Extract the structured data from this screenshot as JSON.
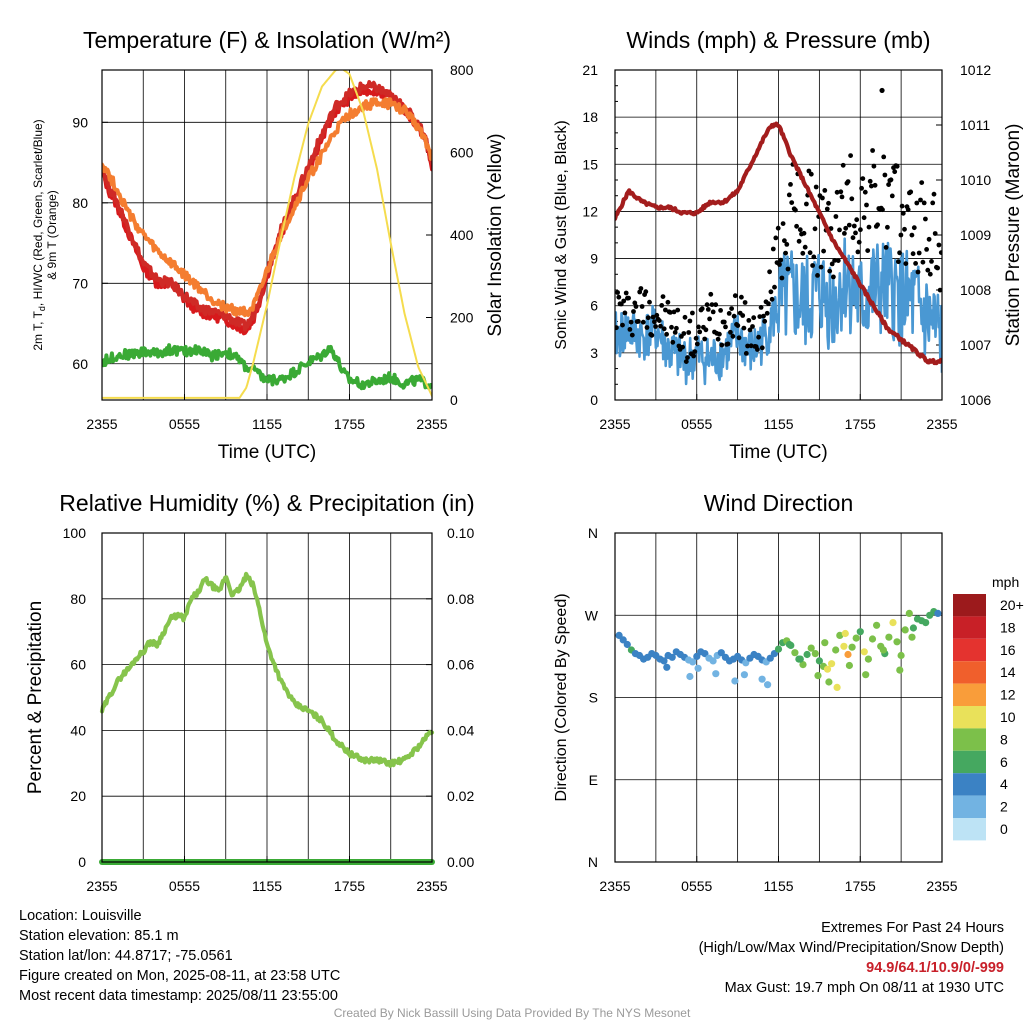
{
  "colors": {
    "temp_red": "#d7191c",
    "temp_scarlet": "#cf2a26",
    "temp_9m_orange": "#f47d30",
    "dewpoint_green": "#3aaa35",
    "insolation_yellow": "#f5dc4e",
    "wind_blue": "#4a98d3",
    "gust_black": "#000000",
    "pressure_maroon": "#a31d1d",
    "rh_green": "#86c44c",
    "precip_green": "#3aaa35"
  },
  "chart_data": [
    {
      "id": "temperature",
      "type": "line",
      "title": "Temperature (F) & Insolation (W/m²)",
      "xlabel": "Time (UTC)",
      "ylabel": "2m T, Td, HI/WC (Red, Green, Scarlet/Blue) & 9m T (Orange)",
      "ylabel_lines": [
        "2m T, T",
        "d",
        ", HI/WC (Red, Green, Scarlet/Blue)",
        "& 9m T (Orange)"
      ],
      "y2label": "Solar Insolation (Yellow)",
      "xticks": [
        "2355",
        "0555",
        "1155",
        "1755",
        "2355"
      ],
      "yticks": [
        60,
        70,
        80,
        90
      ],
      "y2ticks": [
        0,
        200,
        400,
        600,
        800
      ],
      "ylim": [
        55.5,
        96.5
      ],
      "y2lim": [
        0,
        800
      ],
      "x_hours": [
        0,
        24
      ],
      "series": [
        {
          "name": "2m T",
          "color": "#d7191c",
          "x": [
            0,
            0.5,
            1,
            2,
            3,
            4,
            5,
            6,
            7,
            8,
            9,
            10,
            10.5,
            11,
            11.5,
            12,
            13,
            14,
            15,
            16,
            17,
            18,
            19,
            20,
            21,
            22,
            22.5,
            23,
            23.5,
            24
          ],
          "values": [
            84,
            81.5,
            80,
            76,
            72,
            70,
            70,
            68,
            66.5,
            66,
            65.5,
            64.5,
            64.2,
            65.5,
            68,
            71,
            76,
            80,
            84,
            88,
            91.5,
            93,
            94,
            94,
            93,
            91.5,
            90.5,
            89.5,
            88,
            84.5
          ]
        },
        {
          "name": "HI/WC",
          "color": "#cf2a26",
          "x": [
            0,
            0.5,
            1,
            2,
            3,
            4,
            5,
            6,
            7,
            8,
            9,
            10,
            10.5,
            11,
            11.5,
            12,
            13,
            14,
            15,
            16,
            17,
            18,
            19,
            20,
            21,
            22,
            22.5,
            23,
            23.5,
            24
          ],
          "values": [
            84.5,
            82,
            80.5,
            76.5,
            72.5,
            70.5,
            70,
            68.5,
            67,
            66.5,
            66,
            65,
            64.6,
            66,
            68.5,
            71.5,
            76.5,
            80.5,
            84.5,
            88.5,
            92,
            93.5,
            94.5,
            94.3,
            93.2,
            91.8,
            90.8,
            89.8,
            88.2,
            84.8
          ]
        },
        {
          "name": "9m T",
          "color": "#f47d30",
          "x": [
            0,
            0.5,
            1,
            2,
            3,
            4,
            5,
            6,
            7,
            8,
            9,
            10,
            10.5,
            11,
            11.5,
            12,
            13,
            14,
            15,
            16,
            17,
            18,
            19,
            20,
            21,
            22,
            22.5,
            23,
            23.5,
            24
          ],
          "values": [
            85,
            83.5,
            82,
            78.5,
            76,
            74,
            72.5,
            71,
            69.5,
            68,
            67,
            66.5,
            66.5,
            67,
            69,
            71.5,
            76,
            79.5,
            83,
            86,
            89,
            91,
            92,
            92.5,
            92.3,
            91.5,
            90.5,
            89.5,
            88,
            85.5
          ]
        },
        {
          "name": "Td",
          "color": "#3aaa35",
          "x": [
            0,
            1,
            2,
            3,
            4,
            5,
            6,
            7,
            8,
            9,
            10,
            10.5,
            11,
            11.5,
            12,
            13,
            14,
            15,
            16,
            16.5,
            17,
            17.5,
            18,
            19,
            20,
            21,
            22,
            23,
            24
          ],
          "values": [
            60.2,
            61,
            61.2,
            61.5,
            61.3,
            61.8,
            61.5,
            61.8,
            61,
            61.5,
            60.5,
            59.5,
            59.3,
            58.5,
            58,
            58,
            59,
            60.2,
            61,
            62,
            61,
            59,
            58,
            57.5,
            57.8,
            58.3,
            57.5,
            58,
            57.3
          ]
        },
        {
          "name": "Insolation",
          "color": "#f5dc4e",
          "axis": "y2",
          "x": [
            0,
            10,
            10.5,
            11,
            12,
            13,
            14,
            15,
            16,
            17,
            17.5,
            18,
            19,
            20,
            21,
            22,
            23,
            24
          ],
          "values": [
            5,
            5,
            30,
            90,
            230,
            390,
            540,
            670,
            760,
            800,
            802,
            790,
            700,
            560,
            380,
            210,
            80,
            10
          ]
        }
      ]
    },
    {
      "id": "winds",
      "type": "line",
      "title": "Winds (mph) & Pressure (mb)",
      "xlabel": "Time (UTC)",
      "ylabel": "Sonic Wind & Gust (Blue, Black)",
      "y2label": "Station Pressure (Maroon)",
      "xticks": [
        "2355",
        "0555",
        "1155",
        "1755",
        "2355"
      ],
      "yticks": [
        0,
        3,
        6,
        9,
        12,
        15,
        18,
        21
      ],
      "y2ticks": [
        1006,
        1007,
        1008,
        1009,
        1010,
        1011,
        1012
      ],
      "ylim": [
        0,
        21
      ],
      "y2lim": [
        1006,
        1012
      ],
      "series": [
        {
          "name": "Sonic Wind",
          "color": "#4a98d3",
          "x": [
            0,
            1,
            2,
            3,
            4,
            5,
            6,
            7,
            8,
            9,
            10,
            11,
            12,
            13,
            14,
            15,
            16,
            17,
            18,
            19,
            20,
            21,
            22,
            23,
            24
          ],
          "values": [
            4,
            4.5,
            4,
            4.5,
            3,
            2.5,
            2.8,
            2.5,
            3,
            4,
            3,
            4,
            6,
            6.5,
            6,
            7,
            6,
            8,
            6,
            7,
            7,
            6.5,
            6,
            5,
            4
          ]
        },
        {
          "name": "Gust",
          "color": "#000000",
          "x": [
            0,
            1,
            2,
            3,
            4,
            5,
            6,
            7,
            8,
            9,
            10,
            11,
            12,
            13,
            14,
            15,
            16,
            17,
            18,
            19,
            20,
            21,
            22,
            23,
            24
          ],
          "values": [
            6,
            5.5,
            6,
            5.5,
            5,
            4,
            4,
            5.5,
            5,
            5.5,
            4,
            5,
            10,
            12,
            11.5,
            11,
            10,
            13,
            12,
            13,
            12.5,
            11.5,
            11,
            10.5,
            9.5
          ]
        },
        {
          "name": "Pressure",
          "color": "#a31d1d",
          "axis": "y2",
          "x": [
            0,
            1,
            2,
            3,
            4,
            5,
            6,
            7,
            8,
            9,
            10,
            11,
            11.5,
            12,
            13,
            14,
            15,
            16,
            17,
            18,
            19,
            20,
            21,
            22,
            23,
            24
          ],
          "values": [
            1009.3,
            1009.8,
            1009.6,
            1009.5,
            1009.5,
            1009.4,
            1009.4,
            1009.6,
            1009.6,
            1009.8,
            1010.3,
            1010.8,
            1011.0,
            1011.0,
            1010.4,
            1009.9,
            1009.4,
            1008.9,
            1008.5,
            1008.1,
            1007.7,
            1007.3,
            1007.1,
            1006.9,
            1006.7,
            1006.7
          ]
        }
      ],
      "max_gust_point": {
        "x": 19.6,
        "value": 19.7
      }
    },
    {
      "id": "humidity",
      "type": "line",
      "title": "Relative Humidity (%) & Precipitation (in)",
      "xlabel": "",
      "ylabel": "Percent & Precipitation",
      "xticks": [
        "2355",
        "0555",
        "1155",
        "1755",
        "2355"
      ],
      "yticks": [
        0,
        20,
        40,
        60,
        80,
        100
      ],
      "y2ticks": [
        "0.00",
        "0.02",
        "0.04",
        "0.06",
        "0.08",
        "0.10"
      ],
      "ylim": [
        0,
        100
      ],
      "y2lim": [
        0,
        0.1
      ],
      "series": [
        {
          "name": "RH",
          "color": "#86c44c",
          "x": [
            0,
            0.5,
            1,
            1.5,
            2,
            2.5,
            3,
            3.5,
            4,
            4.5,
            5,
            5.5,
            6,
            6.5,
            7,
            7.5,
            8,
            8.5,
            9,
            9.5,
            10,
            10.5,
            11,
            11.5,
            12,
            13,
            14,
            15,
            16,
            17,
            18,
            19,
            20,
            21,
            22,
            23,
            24
          ],
          "values": [
            46,
            50,
            54,
            57,
            59,
            62,
            64,
            67,
            66,
            70,
            74,
            75,
            74,
            80,
            82,
            86,
            84,
            82,
            87,
            81,
            83,
            87,
            84,
            76,
            66,
            55,
            48,
            46,
            43,
            37,
            33,
            31,
            31,
            30,
            31,
            35,
            40
          ]
        },
        {
          "name": "Precipitation",
          "color": "#3aaa35",
          "axis": "y2",
          "x": [
            0,
            24
          ],
          "values": [
            0,
            0
          ]
        }
      ]
    },
    {
      "id": "direction",
      "type": "scatter",
      "title": "Wind Direction",
      "xlabel": "",
      "ylabel": "Direction (Colored By Speed)",
      "xticks": [
        "2355",
        "0555",
        "1155",
        "1755",
        "2355"
      ],
      "ytick_labels": [
        "N",
        "E",
        "S",
        "W",
        "N"
      ],
      "ylim": [
        0,
        360
      ],
      "legend_title": "mph",
      "legend_labels": [
        "20+",
        "18",
        "16",
        "14",
        "12",
        "10",
        "8",
        "6",
        "4",
        "2",
        "0"
      ],
      "legend_colors": [
        "#9c1a1c",
        "#c82027",
        "#e4332f",
        "#f05f2c",
        "#f99d3a",
        "#e9e15a",
        "#7cc04a",
        "#45a860",
        "#3b82c4",
        "#72b3e2",
        "#bde3f5"
      ],
      "points": {
        "x": [
          0.3,
          0.6,
          0.9,
          1.2,
          1.5,
          1.8,
          2.1,
          2.4,
          2.7,
          3.0,
          3.3,
          3.6,
          3.9,
          4.2,
          4.5,
          4.8,
          5.1,
          5.4,
          5.7,
          6.0,
          6.3,
          6.6,
          6.9,
          7.2,
          7.5,
          7.8,
          8.1,
          8.4,
          8.7,
          9.0,
          9.3,
          9.6,
          9.9,
          10.2,
          10.5,
          10.8,
          11.1,
          11.4,
          11.7,
          12.0,
          12.3,
          12.6,
          12.9,
          13.2,
          13.5,
          13.8,
          14.1,
          14.4,
          14.7,
          15.0,
          15.3,
          15.6,
          15.9,
          16.2,
          16.5,
          16.8,
          17.1,
          17.4,
          17.7,
          18.0,
          18.3,
          18.6,
          18.9,
          19.2,
          19.5,
          19.8,
          20.1,
          20.4,
          20.7,
          21.0,
          21.3,
          21.6,
          21.9,
          22.2,
          22.5,
          22.8,
          23.1,
          23.4,
          23.7,
          5.5,
          6.1,
          7.4,
          8.8,
          9.5,
          10.8,
          11.2,
          13.6,
          14.9,
          15.7,
          16.3,
          17.2,
          18.4,
          19.7,
          20.9,
          21.8,
          3.8,
          12.8,
          15.4,
          16.9
        ],
        "values": [
          248,
          243,
          238,
          232,
          228,
          226,
          222,
          224,
          228,
          226,
          222,
          220,
          226,
          224,
          230,
          227,
          224,
          221,
          219,
          225,
          230,
          228,
          223,
          220,
          226,
          229,
          224,
          220,
          222,
          225,
          221,
          218,
          223,
          227,
          225,
          221,
          219,
          223,
          228,
          233,
          240,
          242,
          237,
          229,
          222,
          216,
          227,
          234,
          228,
          220,
          214,
          211,
          217,
          232,
          248,
          236,
          227,
          235,
          245,
          252,
          230,
          222,
          244,
          259,
          236,
          228,
          246,
          262,
          241,
          226,
          254,
          272,
          256,
          266,
          264,
          262,
          270,
          274,
          272,
          203,
          212,
          206,
          198,
          205,
          200,
          194,
          222,
          204,
          197,
          191,
          215,
          205,
          232,
          210,
          246,
          213,
          238,
          240,
          250
        ],
        "speeds": [
          4,
          4,
          4,
          5,
          4,
          4,
          4,
          3,
          4,
          4,
          3,
          4,
          4,
          4,
          3,
          4,
          3,
          2,
          1,
          3,
          4,
          3,
          2,
          1,
          2,
          3,
          4,
          3,
          3,
          4,
          3,
          2,
          3,
          3,
          4,
          3,
          2,
          3,
          4,
          5,
          6,
          7,
          6,
          8,
          6,
          7,
          6,
          8,
          7,
          6,
          8,
          10,
          9,
          7,
          8,
          9,
          11,
          7,
          8,
          6,
          9,
          7,
          8,
          8,
          7,
          6,
          8,
          9,
          7,
          7,
          8,
          7,
          6,
          6,
          5,
          5,
          5,
          5,
          4,
          2,
          2,
          1,
          1,
          2,
          2,
          2,
          6,
          7,
          8,
          10,
          8,
          7,
          8,
          7,
          8,
          3,
          6,
          7,
          9
        ]
      }
    }
  ],
  "info": {
    "location": "Location: Louisville",
    "elevation": "Station elevation: 85.1 m",
    "latlon": "Station lat/lon: 44.8717; -75.0561",
    "created": "Figure created on Mon, 2025-08-11, at 23:58 UTC",
    "recent": "Most recent data timestamp: 2025/08/11 23:55:00"
  },
  "extremes": {
    "title": "Extremes For Past 24 Hours",
    "subtitle": "(High/Low/Max Wind/Precipitation/Snow Depth)",
    "values": "94.9/64.1/10.9/0/-999",
    "max_gust": "Max Gust: 19.7 mph On 08/11 at 1930 UTC"
  },
  "credit": "Created By Nick Bassill Using Data Provided By The NYS Mesonet"
}
